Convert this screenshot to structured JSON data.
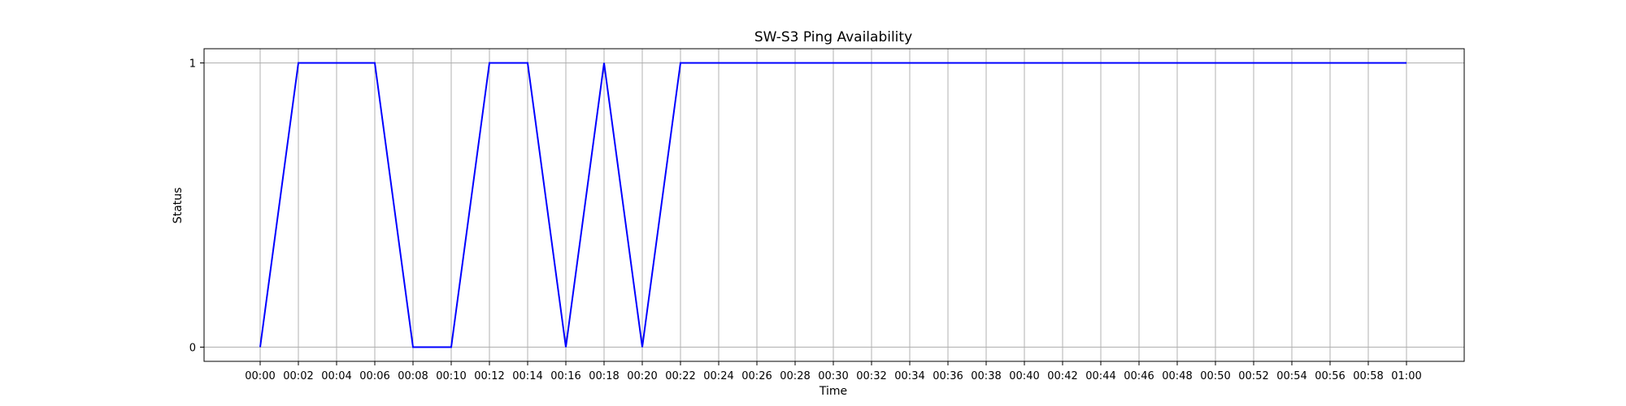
{
  "chart_data": {
    "type": "line",
    "title": "SW-S3 Ping Availability",
    "xlabel": "Time",
    "ylabel": "Status",
    "x": [
      "00:00",
      "00:02",
      "00:04",
      "00:06",
      "00:08",
      "00:10",
      "00:12",
      "00:14",
      "00:16",
      "00:18",
      "00:20",
      "00:22",
      "00:24",
      "00:26",
      "00:28",
      "00:30",
      "00:32",
      "00:34",
      "00:36",
      "00:38",
      "00:40",
      "00:42",
      "00:44",
      "00:46",
      "00:48",
      "00:50",
      "00:52",
      "00:54",
      "00:56",
      "00:58",
      "01:00"
    ],
    "series": [
      {
        "values": [
          0,
          1,
          1,
          1,
          0,
          0,
          1,
          1,
          0,
          1,
          0,
          1,
          1,
          1,
          1,
          1,
          1,
          1,
          1,
          1,
          1,
          1,
          1,
          1,
          1,
          1,
          1,
          1,
          1,
          1,
          1
        ],
        "color": "#0000ff"
      }
    ],
    "yticks": [
      0,
      1
    ],
    "ylim": [
      -0.05,
      1.05
    ],
    "grid": true
  }
}
